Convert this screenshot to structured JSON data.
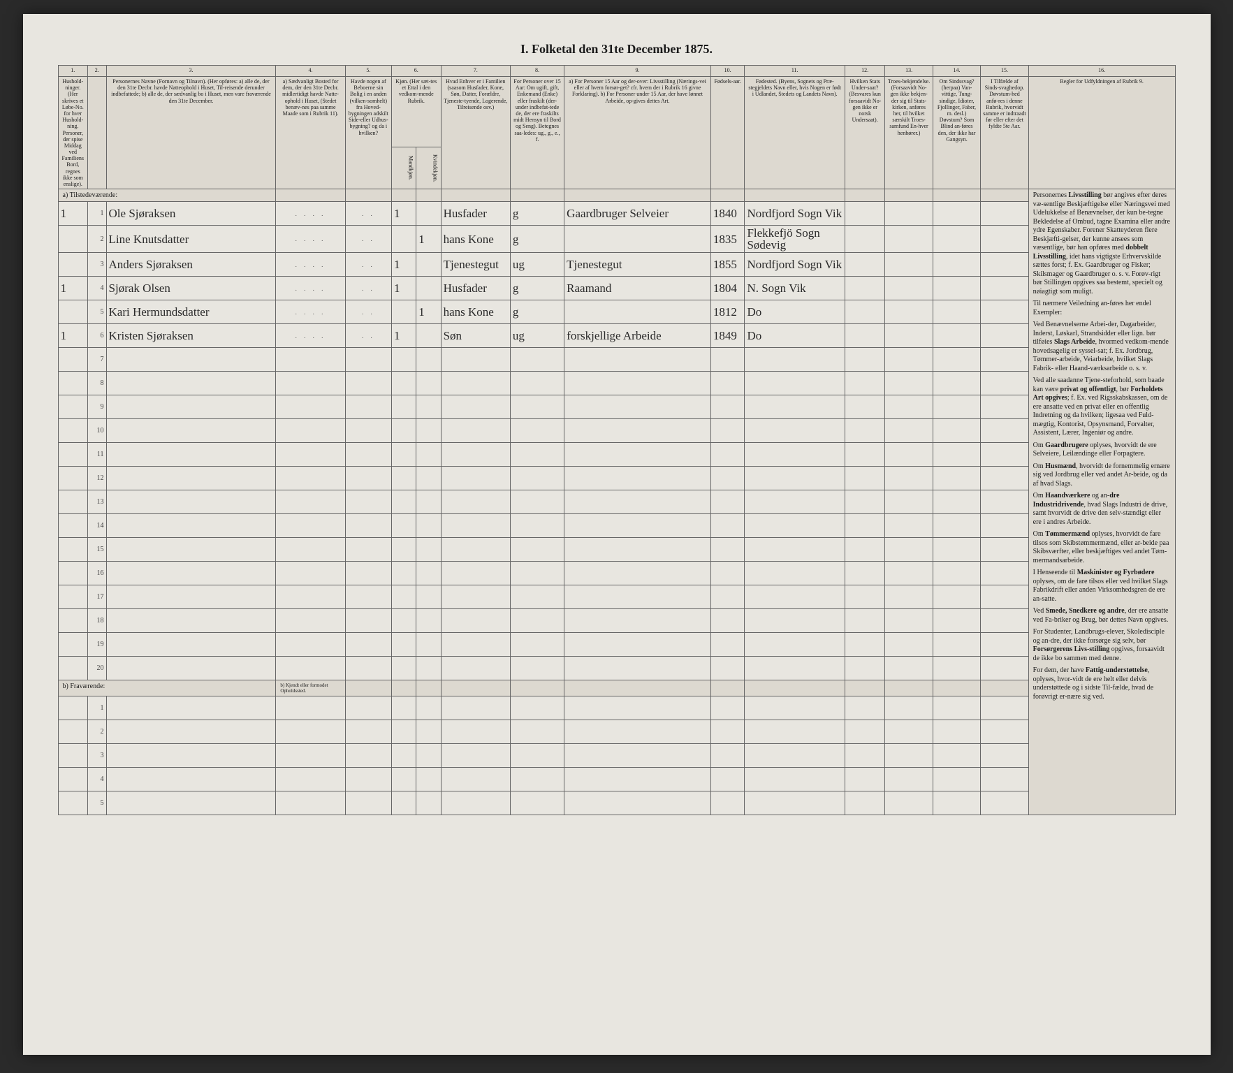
{
  "title": "I. Folketal den 31te December 1875.",
  "columns_numbers": [
    "1.",
    "2.",
    "3.",
    "4.",
    "5.",
    "6.",
    "7.",
    "8.",
    "9.",
    "10.",
    "11.",
    "12.",
    "13.",
    "14.",
    "15.",
    "16."
  ],
  "headers": {
    "c1": "Hushold-ninger. (Her skrives et Løbe-No. for hver Hushold-ning. Personer, der spise Middag ved Familiens Bord, regnes ikke som enslige).",
    "c2": "",
    "c3": "Personernes Navne (Fornavn og Tilnavn).\n(Her opføres:\na) alle de, der den 31te Decbr. havde Natteophold i Huset, Til-reisende derunder indbefattede;\nb) alle de, der sædvanlig bo i Huset, men vare fraværende den 31te December.",
    "c4": "a) Sædvanligt Bosted for dem, der den 31te Decbr. midlertidigt havde Natte-ophold i Huset, (Stedet benæv-nes paa samme Maade som i Rubrik 11).",
    "c5": "Havde nogen af Beboerne sin Bolig i en anden (vilken-somhelt) fra Hoved-bygningen adskilt Side-eller Udhus-bygning? og da i hvilken?",
    "c6": "Kjøn. (Her sæt-tes et Ettal i den vedkom-mende Rubrik.",
    "c6a": "Mandkjøn.",
    "c6b": "Kvindekjøn.",
    "c7": "Hvad Enhver er i Familien (saasom Husfader, Kone, Søn, Datter, Forældre, Tjeneste-tyende, Logerende, Tilreisende osv.)",
    "c8": "For Personer over 15 Aar: Om ugift, gift, Enkemand (Enke) eller fraskilt (der-under indbefat-tede de, der ere fraskilts midt Hensyn til Bord og Seng). Betegnes saa-ledes: ug., g., e., f.",
    "c9": "a) For Personer 15 Aar og der-over: Livsstilling (Nærings-vei eller af hvem forsør-get? cfr. hvem der i Rubrik 16 givne Forklaring).\nb) For Personer under 15 Aar, der have lønnet Arbeide, op-gives dettes Art.",
    "c10": "Fødsels-aar.",
    "c11": "Fødested.\n(Byens, Sognets og Præ-stegjeldets Navn eller, hvis Nogen er født i Udlandet, Stedets og Landets Navn).",
    "c12": "Hvilken Stats Under-saat?\n(Besvares kun forsaavidt No-gen ikke er norsk Undersaat).",
    "c13": "Troes-bekjendelse.\n(Forsaavidt No-gen ikke bekjen-der sig til Stats-kirken, anføres her, til hvilket særskilt Troes-samfund En-hver henhører.)",
    "c14": "Om Sindssvag? (herpaa) Van-vittige, Tung-sindige, Idioter, Fjollinger, Faber, m. desl.) Døvstum? Som Blind an-føres den, der ikke har Gangsyn.",
    "c15": "I Tilfælde af Sinds-svaghedop. Døvstum-hed anfø-res i denne Rubrik, hvorvidt samme er indtraadt før eller efter det fyldte 5te Aar.",
    "c16": "Regler for Udfyldningen\naf\nRubrik 9."
  },
  "section_a": "a) Tilstedeværende:",
  "section_b": "b) Fraværende:",
  "section_b_note": "b) Kjendt eller formodet Opholdssted.",
  "rows": [
    {
      "hh": "1",
      "n": "1",
      "name": "Ole Sjøraksen",
      "c4": "",
      "c5": "",
      "m": "1",
      "k": "",
      "rel": "Husfader",
      "civ": "g",
      "occ": "Gaardbruger Selveier",
      "year": "1840",
      "birthplace": "Nordfjord Sogn Vik"
    },
    {
      "hh": "",
      "n": "2",
      "name": "Line Knutsdatter",
      "c4": "",
      "c5": "",
      "m": "",
      "k": "1",
      "rel": "hans Kone",
      "civ": "g",
      "occ": "",
      "year": "1835",
      "birthplace": "Flekkefjö Sogn Sødevig"
    },
    {
      "hh": "",
      "n": "3",
      "name": "Anders Sjøraksen",
      "c4": "",
      "c5": "",
      "m": "1",
      "k": "",
      "rel": "Tjenestegut",
      "civ": "ug",
      "occ": "Tjenestegut",
      "year": "1855",
      "birthplace": "Nordfjord Sogn Vik"
    },
    {
      "hh": "1",
      "n": "4",
      "name": "Sjørak Olsen",
      "c4": "",
      "c5": "",
      "m": "1",
      "k": "",
      "rel": "Husfader",
      "civ": "g",
      "occ": "Raamand",
      "year": "1804",
      "birthplace": "N. Sogn Vik"
    },
    {
      "hh": "",
      "n": "5",
      "name": "Kari Hermundsdatter",
      "c4": "",
      "c5": "",
      "m": "",
      "k": "1",
      "rel": "hans Kone",
      "civ": "g",
      "occ": "",
      "year": "1812",
      "birthplace": "Do"
    },
    {
      "hh": "1",
      "n": "6",
      "name": "Kristen Sjøraksen",
      "c4": "",
      "c5": "",
      "m": "1",
      "k": "",
      "rel": "Søn",
      "civ": "ug",
      "occ": "forskjellige Arbeide",
      "year": "1849",
      "birthplace": "Do"
    }
  ],
  "empty_a": [
    "7",
    "8",
    "9",
    "10",
    "11",
    "12",
    "13",
    "14",
    "15",
    "16",
    "17",
    "18",
    "19",
    "20"
  ],
  "empty_b": [
    "1",
    "2",
    "3",
    "4",
    "5"
  ],
  "rules_text": [
    "Personernes <b>Livsstilling</b> bør angives efter deres væ-sentlige Beskjæftigelse eller Næringsvei med Udelukkelse af Benævnelser, der kun be-tegne Bekledelse af Ombud, tagne Examina eller andre ydre Egenskaber. Forener Skatteyderen flere Beskjæfti-gelser, der kunne ansees som væsentlige, bør han opføres med <b>dobbelt Livsstilling</b>, idet hans vigtigste Erhvervskilde sættes forst; f. Ex. Gaardbruger og Fisker; Skilsmager og Gaardbruger o. s. v. Forøv-rigt bør Stillingen opgives saa bestemt, specielt og nøiagtigt som muligt.",
    "Til nærmere Veiledning an-føres her endel Exempler:",
    "Ved Benævnelserne Arbei-der, Dagarbeider, Inderst, Løskarl, Strandsidder eller lign. bør tilføies <b>Slags Arbeide</b>, hvormed vedkom-mende hovedsagelig er syssel-sat; f. Ex. Jordbrug, Tømmer-arbeide, Veiarbeide, hvilket Slags Fabrik- eller Haand-værksarbeide o. s. v.",
    "Ved alle saadanne Tjene-steforhold, som baade kan være <b>privat og offentligt</b>, bør <b>Forholdets Art opgives</b>; f. Ex. ved Rigsskabskassen, om de ere ansatte ved en privat eller en offentlig Indretning og da hvilken; ligesaa ved Fuld-mægtig, Kontorist, Opsynsmand, Forvalter, Assistent, Lærer, Ingeniør og andre.",
    "Om <b>Gaardbrugere</b> oplyses, hvorvidt de ere Selveiere, Leilændinge eller Forpagtere.",
    "Om <b>Husmænd</b>, hvorvidt de fornemmelig ernære sig ved Jordbrug eller ved andet Ar-beide, og da af hvad Slags.",
    "Om <b>Haandværkere</b> og an-<b>dre Industridrivende</b>, hvad Slags Industri de drive, samt hvorvidt de drive den selv-stændigt eller ere i andres Arbeide.",
    "Om <b>Tømmermænd</b> oplyses, hvorvidt de fare tilsos som Skibstømmermænd, eller ar-beide paa Skibsværfter, eller beskjæftiges ved andet Tøm-mermandsarbeide.",
    "I Henseende til <b>Maskinister og Fyrbødere</b> oplyses, om de fare tilsos eller ved hvilket Slags Fabrikdrift eller anden Virksomhedsgren de ere an-satte.",
    "Ved <b>Smede, Snedkere og andre</b>, der ere ansatte ved Fa-briker og Brug, bør dettes Navn opgives.",
    "For Studenter, Landbrugs-elever, Skoledisciple og an-dre, der ikke forsørge sig selv, bør <b>Forsørgerens Livs-stilling</b> opgives, forsaavidt de ikke bo sammen med denne.",
    "For dem, der have <b>Fattig-understøttelse</b>, oplyses, hvor-vidt de ere helt eller delvis understøttede og i sidste Til-fælde, hvad de forøvrigt er-nære sig ved."
  ]
}
